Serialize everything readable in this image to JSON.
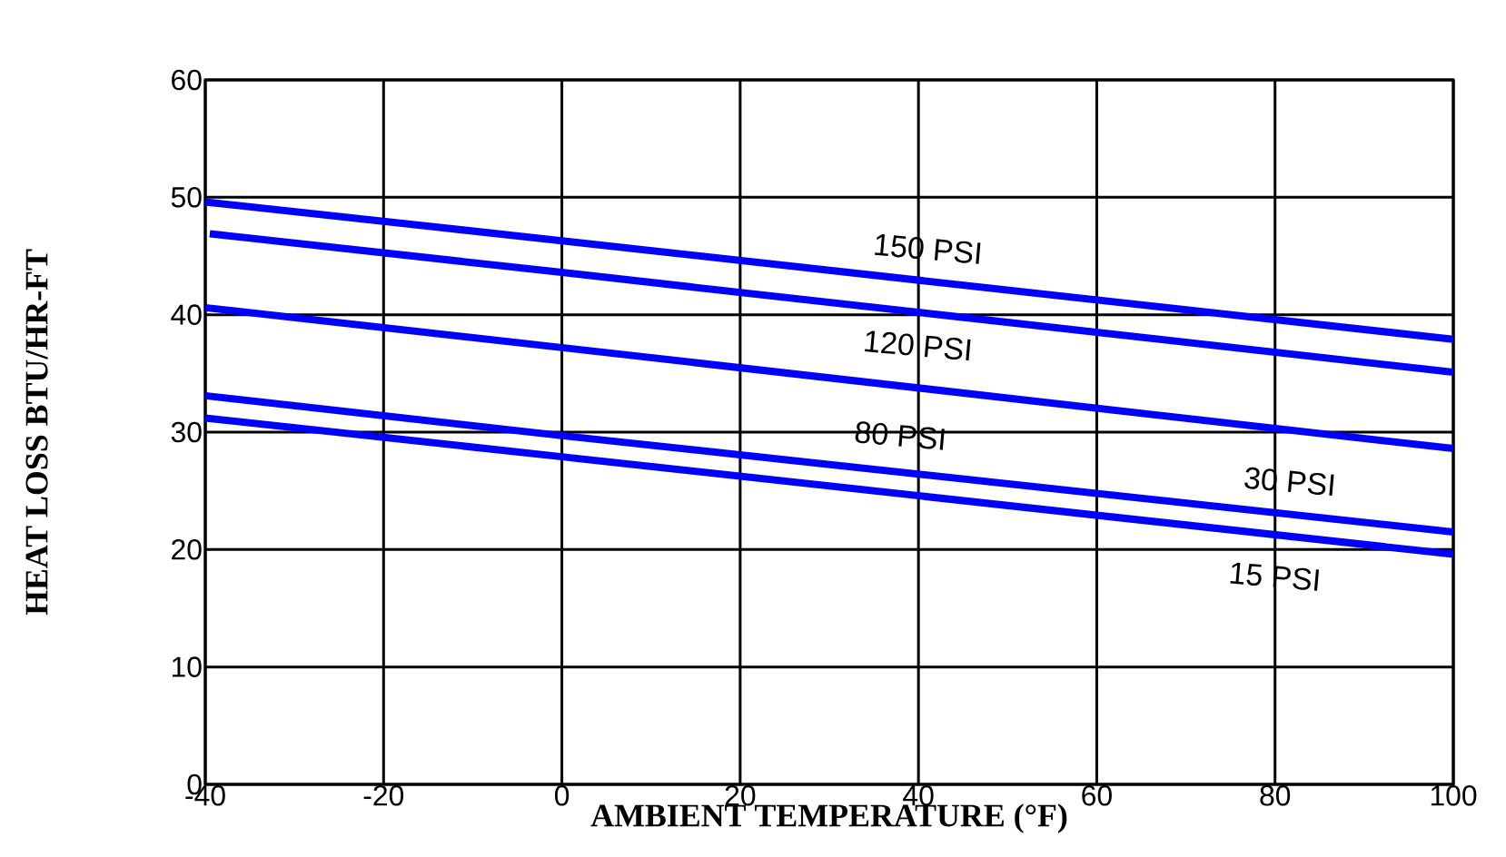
{
  "chart_data": {
    "type": "line",
    "xlabel": "AMBIENT TEMPERATURE (°F)",
    "ylabel": "HEAT LOSS BTU/HR-FT",
    "xlim": [
      -40,
      100
    ],
    "ylim": [
      0,
      60
    ],
    "xticks": [
      -40,
      -20,
      0,
      20,
      40,
      60,
      80,
      100
    ],
    "yticks": [
      0,
      10,
      20,
      30,
      40,
      50,
      60
    ],
    "grid": true,
    "marker": "none",
    "line_style": "solid",
    "series": [
      {
        "color": "#0000ff",
        "x": [
          -40,
          0,
          100
        ],
        "values": [
          49.6,
          46.3,
          37.9
        ]
      },
      {
        "color": "#0000ff",
        "x": [
          -39.5,
          0,
          100
        ],
        "values": [
          46.9,
          43.6,
          35.1
        ]
      },
      {
        "color": "#0000ff",
        "x": [
          -40,
          0,
          100
        ],
        "values": [
          40.6,
          37.2,
          28.6
        ]
      },
      {
        "color": "#0000ff",
        "x": [
          -40,
          0,
          100
        ],
        "values": [
          33.1,
          29.7,
          21.5
        ]
      },
      {
        "color": "#0000ff",
        "x": [
          -40,
          0,
          100
        ],
        "values": [
          31.2,
          27.9,
          19.6
        ]
      }
    ],
    "annotations": [
      "150 PSI",
      "120 PSI",
      "80 PSI",
      "30 PSI",
      "15 PSI"
    ]
  }
}
